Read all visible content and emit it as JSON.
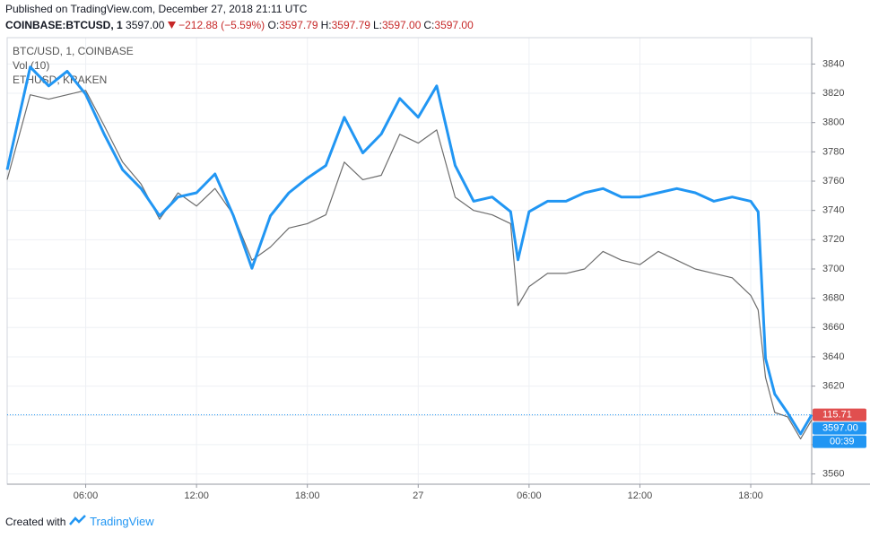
{
  "published": "Published on TradingView.com, December 27, 2018 21:11 UTC",
  "header": {
    "symbol": "COINBASE:BTCUSD, 1",
    "last": "3597.00",
    "change": "−212.88 (−5.59%)",
    "ohlc": [
      {
        "key": "O:",
        "value": "3597.79"
      },
      {
        "key": "H:",
        "value": "3597.79"
      },
      {
        "key": "L:",
        "value": "3597.00"
      },
      {
        "key": "C:",
        "value": "3597.00"
      }
    ]
  },
  "footer": {
    "text": "Created with",
    "brand": "TradingView"
  },
  "chart_data": {
    "type": "line",
    "legend": [
      "BTC/USD, 1, COINBASE",
      "Vol (10)",
      "ETHUSD, KRAKEN"
    ],
    "x": [
      1.75,
      3,
      4,
      5,
      6,
      7,
      8,
      9,
      10,
      11,
      12,
      13,
      14,
      15,
      16,
      17,
      18,
      19,
      20,
      21,
      22,
      23,
      24,
      25,
      26,
      27,
      28,
      29,
      29.4,
      30,
      31,
      32,
      33,
      34,
      35,
      36,
      37,
      38,
      39,
      40,
      41,
      42,
      42.4,
      42.8,
      43.3,
      44,
      44.7,
      45.3
    ],
    "xlim": [
      1.75,
      45.3
    ],
    "xticks": [
      {
        "value": 6,
        "label": "06:00"
      },
      {
        "value": 12,
        "label": "12:00"
      },
      {
        "value": 18,
        "label": "18:00"
      },
      {
        "value": 24,
        "label": "27"
      },
      {
        "value": 30,
        "label": "06:00"
      },
      {
        "value": 36,
        "label": "12:00"
      },
      {
        "value": 42,
        "label": "18:00"
      }
    ],
    "ylim": [
      3553,
      3858
    ],
    "yticks": [
      3560,
      3580,
      3600,
      3620,
      3640,
      3660,
      3680,
      3700,
      3720,
      3740,
      3760,
      3780,
      3800,
      3820,
      3840
    ],
    "y2lim": [
      112.4,
      133.7
    ],
    "grid": true,
    "countdown": "00:39",
    "series": [
      {
        "name": "BTC/USD, 1, COINBASE",
        "color": "#6d6d6d",
        "last_label": "3597.00",
        "label_color": "#2196f3",
        "values": [
          3761,
          3819,
          3816,
          3819,
          3822,
          3798,
          3773,
          3758,
          3734,
          3752,
          3743,
          3755,
          3737,
          3706,
          3715,
          3728,
          3731,
          3737,
          3773,
          3761,
          3764,
          3792,
          3786,
          3795,
          3749,
          3740,
          3737,
          3731,
          3675,
          3688,
          3697,
          3697,
          3700,
          3712,
          3706,
          3703,
          3712,
          3706,
          3700,
          3697,
          3694,
          3682,
          3672,
          3626,
          3602,
          3599,
          3584,
          3597
        ]
      },
      {
        "name": "ETHUSD, KRAKEN",
        "color": "#2196f3",
        "axis": "y2",
        "last_label": "115.71",
        "label_color": "#e04f4f",
        "values": [
          127.4,
          132.3,
          131.4,
          132.1,
          131.0,
          129.1,
          127.4,
          126.5,
          125.2,
          126.1,
          126.3,
          127.2,
          125.2,
          122.7,
          125.2,
          126.3,
          127.0,
          127.6,
          129.9,
          128.2,
          129.1,
          130.8,
          129.9,
          131.4,
          127.6,
          125.9,
          126.1,
          125.4,
          123.1,
          125.4,
          125.9,
          125.9,
          126.3,
          126.5,
          126.1,
          126.1,
          126.3,
          126.5,
          126.3,
          125.9,
          126.1,
          125.9,
          125.4,
          118.4,
          116.7,
          115.8,
          114.8,
          115.71
        ]
      }
    ]
  }
}
